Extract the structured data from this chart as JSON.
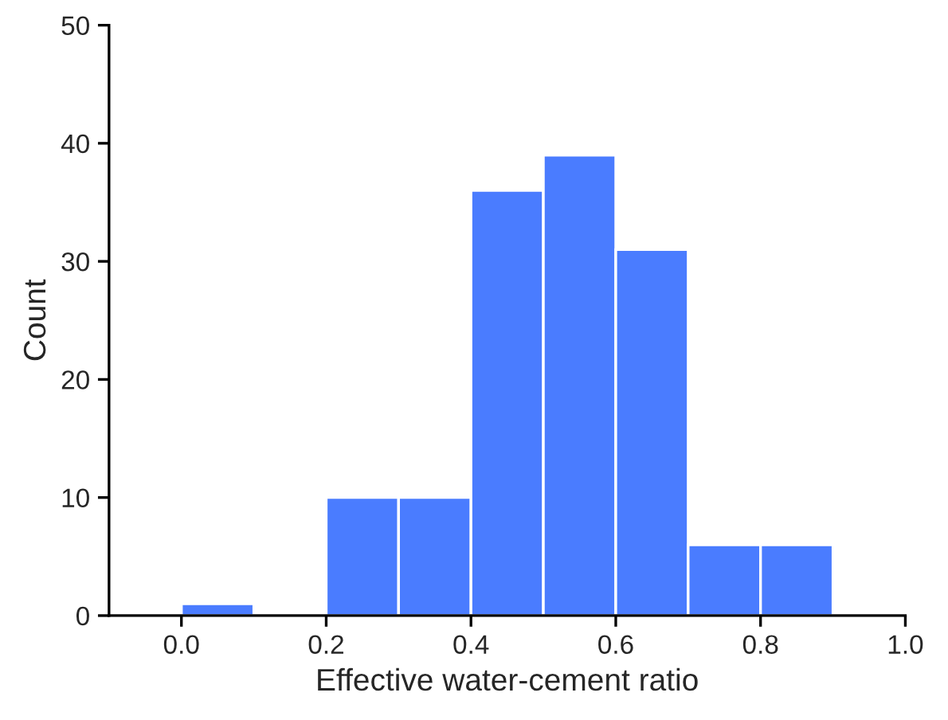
{
  "chart_data": {
    "type": "histogram",
    "xlabel": "Effective water-cement ratio",
    "ylabel": "Count",
    "bins": [
      0.0,
      0.1,
      0.2,
      0.3,
      0.4,
      0.5,
      0.6,
      0.7,
      0.8,
      0.9
    ],
    "values": [
      1,
      0,
      10,
      10,
      36,
      39,
      31,
      6,
      6
    ],
    "color": "#4a7cff",
    "xlim": [
      -0.1,
      1.0
    ],
    "xticks": [
      {
        "value": 0.0,
        "label": "0.0"
      },
      {
        "value": 0.2,
        "label": "0.2"
      },
      {
        "value": 0.4,
        "label": "0.4"
      },
      {
        "value": 0.6,
        "label": "0.6"
      },
      {
        "value": 0.8,
        "label": "0.8"
      },
      {
        "value": 1.0,
        "label": "1.0"
      }
    ],
    "ylim": [
      0,
      50
    ],
    "yticks": [
      0,
      10,
      20,
      30,
      40,
      50
    ],
    "grid": false,
    "legend": false
  }
}
